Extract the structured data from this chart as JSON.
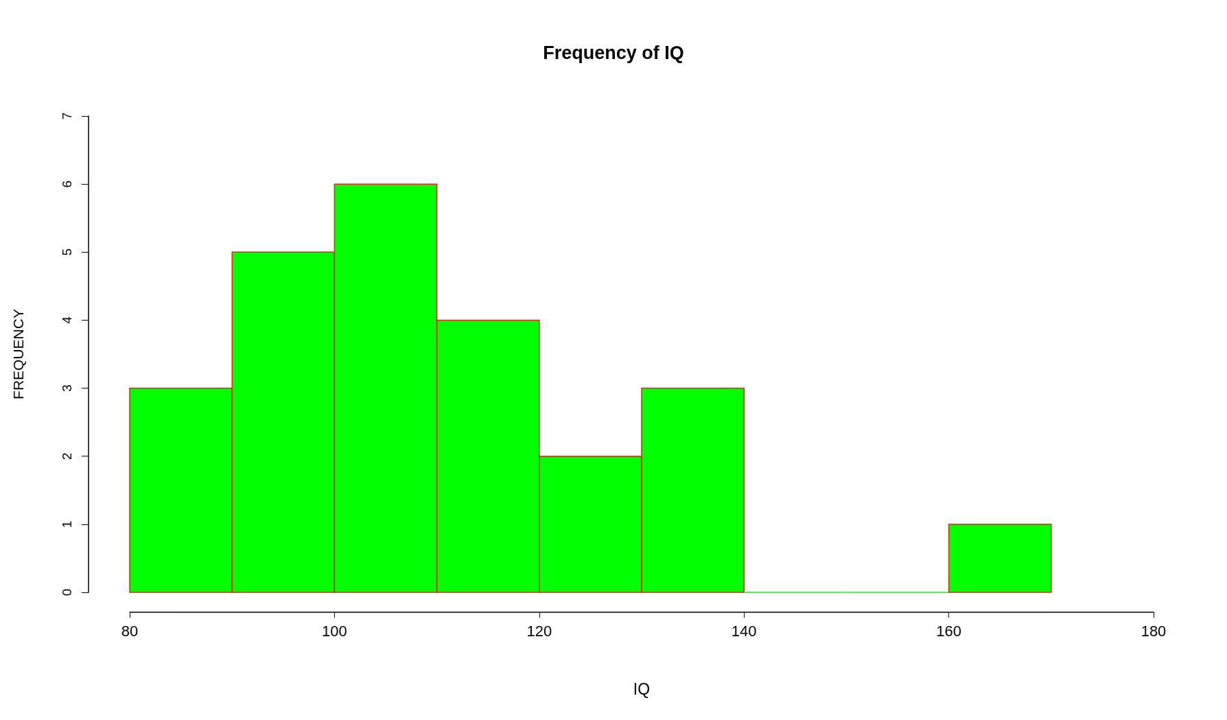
{
  "chart_data": {
    "type": "histogram",
    "title": "Frequency of IQ",
    "xlabel": "IQ",
    "ylabel": "FREQUENCY",
    "bins": [
      80,
      90,
      100,
      110,
      120,
      130,
      140,
      150,
      160,
      170
    ],
    "values": [
      3,
      5,
      6,
      4,
      2,
      3,
      0,
      0,
      1
    ],
    "color": "#00ff00",
    "xlim": [
      80,
      180
    ],
    "xticks": [
      80,
      100,
      120,
      140,
      160,
      180
    ],
    "ylim": [
      0,
      7
    ],
    "yticks": [
      0,
      1,
      2,
      3,
      4,
      5,
      6,
      7
    ],
    "grid": false
  }
}
